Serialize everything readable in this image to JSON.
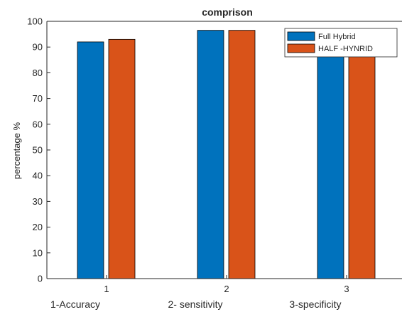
{
  "chart_data": {
    "type": "bar",
    "title": "comprison",
    "xlabel": "",
    "ylabel": "percentage %",
    "categories": [
      "1",
      "2",
      "3"
    ],
    "ylim": [
      0,
      100
    ],
    "yticks": [
      0,
      10,
      20,
      30,
      40,
      50,
      60,
      70,
      80,
      90,
      100
    ],
    "series": [
      {
        "name": "Full Hybrid",
        "color": "#0072BD",
        "values": [
          92,
          96.5,
          94
        ]
      },
      {
        "name": "HALF -HYNRID",
        "color": "#D95319",
        "values": [
          93,
          96.5,
          94
        ]
      }
    ],
    "legend_position": "top-right",
    "grid": false,
    "category_notes": [
      "1-Accuracy",
      "2- sensitivity",
      "3-specificity"
    ]
  }
}
